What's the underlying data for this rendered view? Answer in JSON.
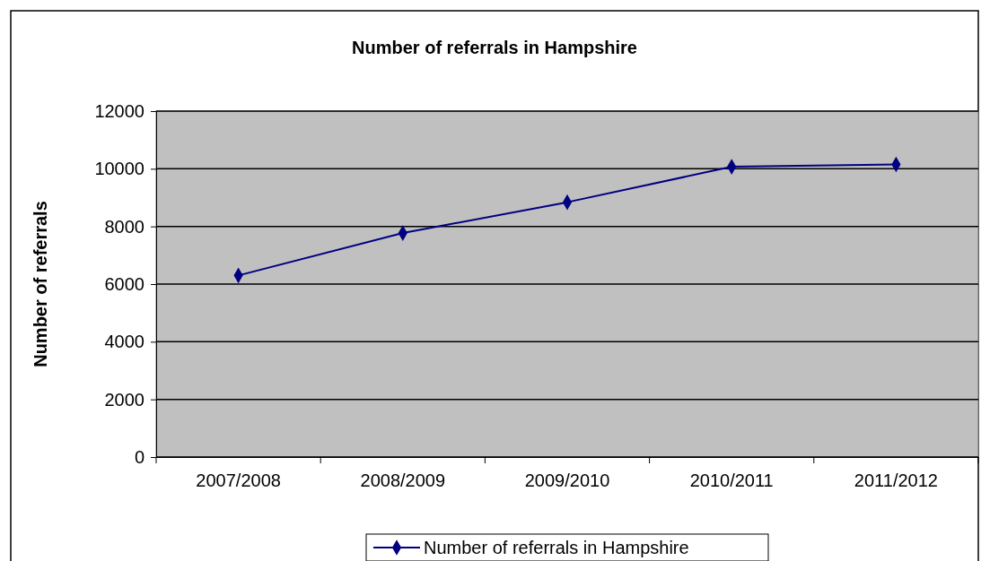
{
  "chart_data": {
    "type": "line",
    "title": "Number of referrals in Hampshire",
    "ylabel": "Number of referrals",
    "categories": [
      "2007/2008",
      "2008/2009",
      "2009/2010",
      "2010/2011",
      "2011/2012"
    ],
    "series": [
      {
        "name": "Number of referrals in Hampshire",
        "color": "#000080",
        "values": [
          6300,
          7770,
          8840,
          10070,
          10150
        ]
      }
    ],
    "ylim": [
      0,
      12000
    ],
    "yticks": [
      0,
      2000,
      4000,
      6000,
      8000,
      10000,
      12000
    ],
    "grid": "y",
    "legend": "bottom",
    "marker": "diamond",
    "line_style": "solid"
  }
}
